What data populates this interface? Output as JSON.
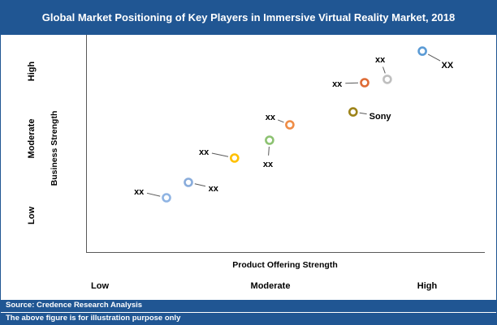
{
  "header": {
    "title": "Global Market Positioning of Key Players in Immersive Virtual Reality Market, 2018"
  },
  "chart_data": {
    "type": "scatter",
    "title": "Global Market Positioning of Key Players in Immersive Virtual Reality Market, 2018",
    "xlabel": "Product Offering Strength",
    "ylabel": "Business Strength",
    "x_ticks": [
      "Low",
      "Moderate",
      "High"
    ],
    "y_ticks": [
      "High",
      "Moderate",
      "Low"
    ],
    "axis_scale": "qualitative axes; x and y values normalized 0 = Low, 1 = High",
    "grid": false,
    "legend": "none",
    "points": [
      {
        "label": "XX",
        "x": 0.843,
        "y": 0.925,
        "lx": 0.906,
        "ly": 0.862,
        "color": "#5B9BD5"
      },
      {
        "label": "xx",
        "x": 0.755,
        "y": 0.795,
        "lx": 0.737,
        "ly": 0.888,
        "color": "#BFBFBF"
      },
      {
        "label": "xx",
        "x": 0.698,
        "y": 0.78,
        "lx": 0.629,
        "ly": 0.776,
        "color": "#DE6B35"
      },
      {
        "label": "Sony",
        "x": 0.669,
        "y": 0.645,
        "lx": 0.737,
        "ly": 0.627,
        "color": "#9D8319"
      },
      {
        "label": "xx",
        "x": 0.51,
        "y": 0.586,
        "lx": 0.461,
        "ly": 0.623,
        "color": "#EF8C46"
      },
      {
        "label": "xx",
        "x": 0.459,
        "y": 0.515,
        "lx": 0.455,
        "ly": 0.407,
        "color": "#8CC271"
      },
      {
        "label": "xx",
        "x": 0.371,
        "y": 0.433,
        "lx": 0.294,
        "ly": 0.463,
        "color": "#FFC000"
      },
      {
        "label": "xx",
        "x": 0.255,
        "y": 0.321,
        "lx": 0.318,
        "ly": 0.295,
        "color": "#89ACDB"
      },
      {
        "label": "xx",
        "x": 0.2,
        "y": 0.25,
        "lx": 0.131,
        "ly": 0.28,
        "color": "#8FB4E3"
      }
    ]
  },
  "footer": {
    "source_line": "Source: Credence Research Analysis",
    "note_line": "The above figure is for illustration purpose only"
  }
}
